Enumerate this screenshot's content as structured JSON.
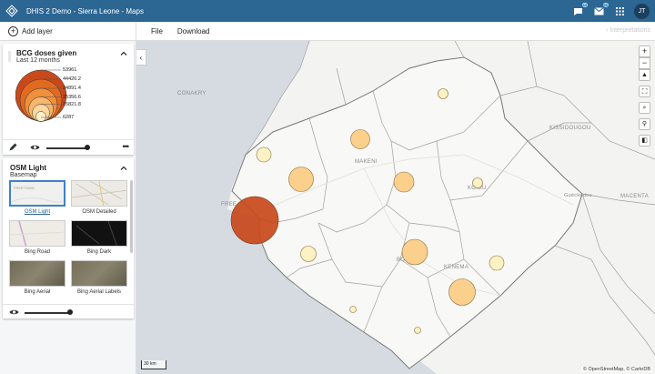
{
  "header": {
    "title": "DHIS 2 Demo - Sierra Leone - Maps",
    "badge_messages": "44",
    "badge_mail": "65",
    "avatar_initials": "JT"
  },
  "toolbar": {
    "add_layer": "Add layer",
    "file": "File",
    "download": "Download",
    "interpretations": "Interpretations"
  },
  "thematic_layer": {
    "title": "BCG doses given",
    "period": "Last 12 months",
    "legend": [
      "53961",
      "44426.2",
      "34891.4",
      "25356.6",
      "15821.8",
      "6287"
    ],
    "legend_colors": [
      "#c8491b",
      "#e16a20",
      "#f08f3c",
      "#f8b56c",
      "#fcd79f",
      "#fef0c9"
    ]
  },
  "basemap_layer": {
    "title": "OSM Light",
    "subtitle": "Basemap",
    "options": [
      "OSM Light",
      "OSM Detailed",
      "Bing Road",
      "Bing Dark",
      "Bing Aerial",
      "Bing Aerial Labels"
    ],
    "selected": "OSM Light",
    "thumb_text": "FREETOWN"
  },
  "map": {
    "labels": {
      "conakry": "CONAKRY",
      "kissidougou": "KISSIDOUGOU",
      "makeni": "MAKENI",
      "koidu": "KOIDU",
      "gueckedou": "Guéckédou",
      "macenta": "MACENTA",
      "kenema": "KENEMA",
      "bo": "BO",
      "freetown": "FREE"
    },
    "scale": "30 km",
    "attribution": "© OpenStreetMap, © CartoDB",
    "colors": {
      "water": "#d6dbe2",
      "land": "#f3f3f1",
      "boundary": "#9a9a9a",
      "bubble_stroke": "#8a6d3b"
    }
  }
}
